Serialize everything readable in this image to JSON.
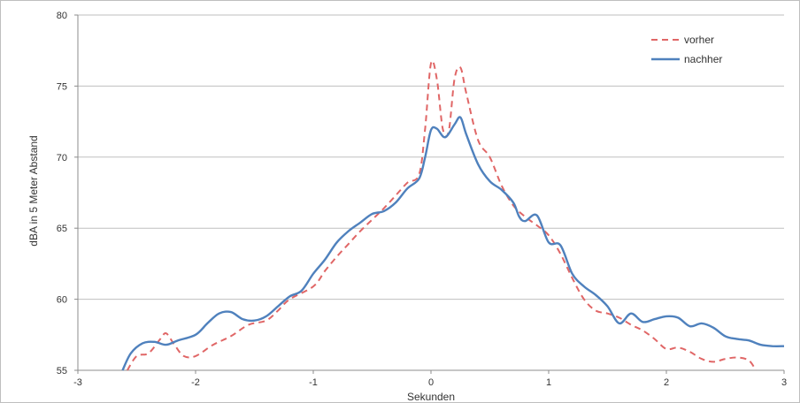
{
  "chart_data": {
    "type": "line",
    "title": "",
    "xlabel": "Sekunden",
    "ylabel": "dBA in 5 Meter Abstand",
    "xlim": [
      -3,
      3
    ],
    "ylim": [
      55,
      80
    ],
    "xticks": [
      -3,
      -2,
      -1,
      0,
      1,
      2,
      3
    ],
    "yticks": [
      55,
      60,
      65,
      70,
      75,
      80
    ],
    "grid": "horizontal",
    "legend": "top-right",
    "series": [
      {
        "name": "vorher",
        "color": "#e06666",
        "style": "dashed",
        "points": [
          [
            -2.58,
            55.0
          ],
          [
            -2.5,
            56.0
          ],
          [
            -2.4,
            56.2
          ],
          [
            -2.3,
            57.2
          ],
          [
            -2.25,
            57.6
          ],
          [
            -2.18,
            56.8
          ],
          [
            -2.1,
            56.0
          ],
          [
            -2.0,
            56.0
          ],
          [
            -1.85,
            56.8
          ],
          [
            -1.7,
            57.4
          ],
          [
            -1.55,
            58.2
          ],
          [
            -1.4,
            58.5
          ],
          [
            -1.3,
            59.2
          ],
          [
            -1.2,
            60.0
          ],
          [
            -1.0,
            60.9
          ],
          [
            -0.9,
            62.0
          ],
          [
            -0.8,
            63.0
          ],
          [
            -0.7,
            63.9
          ],
          [
            -0.6,
            64.8
          ],
          [
            -0.5,
            65.6
          ],
          [
            -0.4,
            66.4
          ],
          [
            -0.3,
            67.3
          ],
          [
            -0.2,
            68.2
          ],
          [
            -0.1,
            68.8
          ],
          [
            -0.05,
            72.0
          ],
          [
            0.0,
            76.6
          ],
          [
            0.05,
            75.5
          ],
          [
            0.1,
            72.0
          ],
          [
            0.15,
            71.8
          ],
          [
            0.2,
            75.5
          ],
          [
            0.25,
            76.3
          ],
          [
            0.3,
            74.5
          ],
          [
            0.4,
            71.2
          ],
          [
            0.5,
            70.0
          ],
          [
            0.6,
            68.0
          ],
          [
            0.7,
            66.6
          ],
          [
            0.8,
            65.8
          ],
          [
            0.9,
            65.2
          ],
          [
            1.0,
            64.5
          ],
          [
            1.1,
            63.2
          ],
          [
            1.2,
            61.5
          ],
          [
            1.3,
            60.0
          ],
          [
            1.4,
            59.2
          ],
          [
            1.5,
            59.0
          ],
          [
            1.6,
            58.7
          ],
          [
            1.7,
            58.2
          ],
          [
            1.8,
            57.8
          ],
          [
            1.9,
            57.2
          ],
          [
            2.0,
            56.5
          ],
          [
            2.1,
            56.6
          ],
          [
            2.2,
            56.3
          ],
          [
            2.3,
            55.8
          ],
          [
            2.4,
            55.6
          ],
          [
            2.5,
            55.8
          ],
          [
            2.6,
            55.9
          ],
          [
            2.7,
            55.7
          ],
          [
            2.76,
            55.0
          ]
        ]
      },
      {
        "name": "nachher",
        "color": "#4f81bd",
        "style": "solid",
        "points": [
          [
            -2.62,
            55.0
          ],
          [
            -2.55,
            56.2
          ],
          [
            -2.45,
            56.9
          ],
          [
            -2.35,
            57.0
          ],
          [
            -2.25,
            56.8
          ],
          [
            -2.15,
            57.1
          ],
          [
            -2.0,
            57.5
          ],
          [
            -1.9,
            58.3
          ],
          [
            -1.8,
            59.0
          ],
          [
            -1.7,
            59.1
          ],
          [
            -1.6,
            58.6
          ],
          [
            -1.5,
            58.5
          ],
          [
            -1.4,
            58.8
          ],
          [
            -1.3,
            59.5
          ],
          [
            -1.2,
            60.2
          ],
          [
            -1.1,
            60.6
          ],
          [
            -1.0,
            61.8
          ],
          [
            -0.9,
            62.8
          ],
          [
            -0.8,
            64.0
          ],
          [
            -0.7,
            64.8
          ],
          [
            -0.6,
            65.4
          ],
          [
            -0.5,
            66.0
          ],
          [
            -0.4,
            66.2
          ],
          [
            -0.3,
            66.8
          ],
          [
            -0.2,
            67.8
          ],
          [
            -0.1,
            68.5
          ],
          [
            -0.05,
            70.0
          ],
          [
            0.0,
            71.9
          ],
          [
            0.05,
            72.0
          ],
          [
            0.12,
            71.4
          ],
          [
            0.2,
            72.3
          ],
          [
            0.25,
            72.8
          ],
          [
            0.3,
            71.6
          ],
          [
            0.4,
            69.5
          ],
          [
            0.5,
            68.3
          ],
          [
            0.6,
            67.7
          ],
          [
            0.7,
            66.8
          ],
          [
            0.75,
            65.8
          ],
          [
            0.8,
            65.5
          ],
          [
            0.9,
            65.9
          ],
          [
            1.0,
            64.0
          ],
          [
            1.1,
            63.8
          ],
          [
            1.2,
            61.8
          ],
          [
            1.3,
            60.9
          ],
          [
            1.4,
            60.3
          ],
          [
            1.5,
            59.5
          ],
          [
            1.6,
            58.3
          ],
          [
            1.7,
            59.0
          ],
          [
            1.8,
            58.4
          ],
          [
            1.9,
            58.6
          ],
          [
            2.0,
            58.8
          ],
          [
            2.1,
            58.7
          ],
          [
            2.2,
            58.1
          ],
          [
            2.3,
            58.3
          ],
          [
            2.4,
            58.0
          ],
          [
            2.5,
            57.4
          ],
          [
            2.6,
            57.2
          ],
          [
            2.7,
            57.1
          ],
          [
            2.8,
            56.8
          ],
          [
            2.9,
            56.7
          ],
          [
            3.0,
            56.7
          ]
        ]
      }
    ]
  }
}
